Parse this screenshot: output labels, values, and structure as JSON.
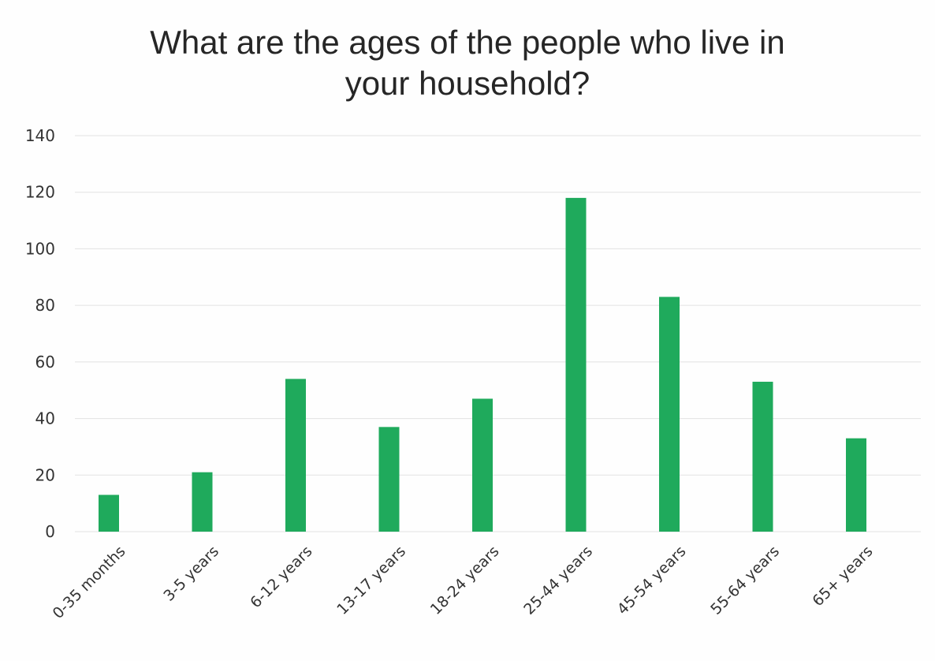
{
  "chart_data": {
    "type": "bar",
    "title_lines": [
      "What are the ages of the people who live in",
      "your household?"
    ],
    "categories": [
      "0-35 months",
      "3-5 years",
      "6-12 years",
      "13-17 years",
      "18-24 years",
      "25-44 years",
      "45-54 years",
      "55-64 years",
      "65+ years"
    ],
    "values": [
      13,
      21,
      54,
      37,
      47,
      118,
      83,
      53,
      33
    ],
    "ylim": [
      0,
      140
    ],
    "yticks": [
      "0",
      "20",
      "40",
      "60",
      "80",
      "100",
      "120",
      "140"
    ],
    "grid": true,
    "legend": "none",
    "bar_color": "#1faa5c",
    "grid_color": "#e2e2e2"
  }
}
